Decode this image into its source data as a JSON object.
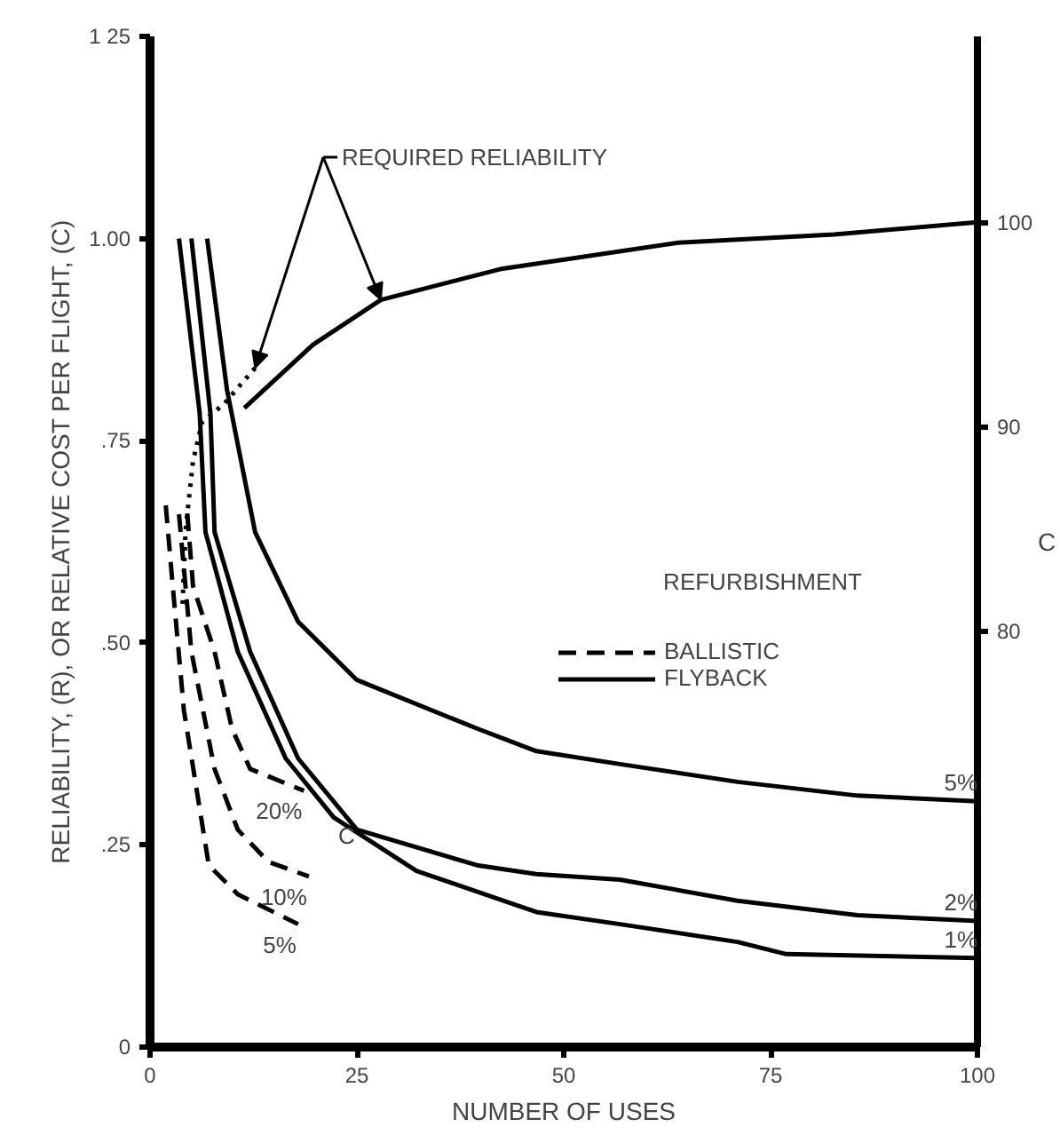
{
  "chart_data": {
    "type": "line",
    "xlabel": "NUMBER OF USES",
    "ylabel": "RELIABILITY, (R), OR RELATIVE COST PER FLIGHT, (C)",
    "xlim": [
      0,
      100
    ],
    "xticks": [
      0,
      25,
      50,
      75,
      100
    ],
    "ylim": [
      0,
      1.25
    ],
    "yticks": [
      0,
      {
        "value": 0.25,
        "label": ".25"
      },
      {
        "value": 0.5,
        "label": ".50"
      },
      {
        "value": 0.75,
        "label": ".75"
      },
      {
        "value": 1.0,
        "label": "1.00"
      },
      {
        "value": 1.25,
        "label": "1 25"
      }
    ],
    "y2lim": [
      59.6,
      109.1
    ],
    "y2ticks": [
      80,
      90,
      100
    ],
    "grid": false,
    "marker": "none",
    "legend": "center right",
    "series": [
      {
        "name": "BALLISTIC",
        "color": "#000000",
        "line_style": "dashed",
        "x": [
          4.5,
          5.2,
          7.8,
          9.9,
          12.1,
          18.6
        ],
        "values": [
          0.66,
          0.57,
          0.489,
          0.394,
          0.344,
          0.317
        ]
      },
      {
        "color": "#000000",
        "line_style": "dashed",
        "x": [
          3.5,
          5.0,
          7.8,
          10.6,
          14.3,
          19.2
        ],
        "values": [
          0.659,
          0.489,
          0.344,
          0.269,
          0.229,
          0.211
        ]
      },
      {
        "color": "#000000",
        "line_style": "dashed",
        "x": [
          1.9,
          2.8,
          4.1,
          7.1,
          10.6,
          17.9
        ],
        "values": [
          0.67,
          0.564,
          0.416,
          0.225,
          0.189,
          0.152
        ]
      },
      {
        "name": "FLYBACK",
        "color": "#000000",
        "line_style": "solid",
        "x": [
          3.5,
          6.0,
          6.7,
          10.6,
          16.4,
          22.2,
          32.2,
          46.7,
          56.8,
          71,
          76.9,
          100
        ],
        "values": [
          1.0,
          0.784,
          0.637,
          0.489,
          0.357,
          0.284,
          0.218,
          0.167,
          0.152,
          0.13,
          0.115,
          0.11
        ]
      },
      {
        "color": "#000000",
        "line_style": "solid",
        "x": [
          5.0,
          7.3,
          7.8,
          12.1,
          17.9,
          25,
          39.5,
          46.7,
          56.8,
          71,
          85.5,
          100
        ],
        "values": [
          1.0,
          0.784,
          0.637,
          0.489,
          0.357,
          0.269,
          0.225,
          0.214,
          0.207,
          0.181,
          0.163,
          0.156
        ]
      },
      {
        "color": "#000000",
        "line_style": "solid",
        "x": [
          6.9,
          9.3,
          12.7,
          17.9,
          25,
          39.5,
          46.7,
          56.8,
          71,
          85.5,
          100
        ],
        "values": [
          1.0,
          0.813,
          0.637,
          0.526,
          0.454,
          0.394,
          0.366,
          0.35,
          0.328,
          0.311,
          0.304
        ]
      },
      {
        "color": "#000000",
        "line_style": "dotted",
        "x": [
          12.7,
          8.9,
          6.3,
          5.2,
          4.3,
          3.9
        ],
        "values": [
          0.84,
          0.795,
          0.773,
          0.725,
          0.64,
          0.54
        ]
      },
      {
        "color": "#000000",
        "line_style": "solid",
        "axis": "y2",
        "x": [
          11.4,
          19.7,
          27.9,
          42.3,
          63.9,
          82.7,
          100
        ],
        "values": [
          90.9,
          94.0,
          96.2,
          97.7,
          99.0,
          99.4,
          100
        ]
      }
    ],
    "annotations": [
      {
        "text": "REQUIRED RELIABILITY",
        "x": 12.7,
        "y": 0.84
      },
      "REFURBISHMENT",
      {
        "text": "20%",
        "x": 18.6,
        "y": 0.317
      },
      {
        "text": "10%",
        "x": 19.2,
        "y": 0.211
      },
      {
        "text": "5%",
        "x": 17.9,
        "y": 0.152
      },
      "C",
      {
        "text": "5%",
        "x": 100,
        "y": 0.304
      },
      {
        "text": "2%",
        "x": 100,
        "y": 0.156
      },
      {
        "text": "1%",
        "x": 100,
        "y": 0.11
      },
      "C"
    ]
  }
}
